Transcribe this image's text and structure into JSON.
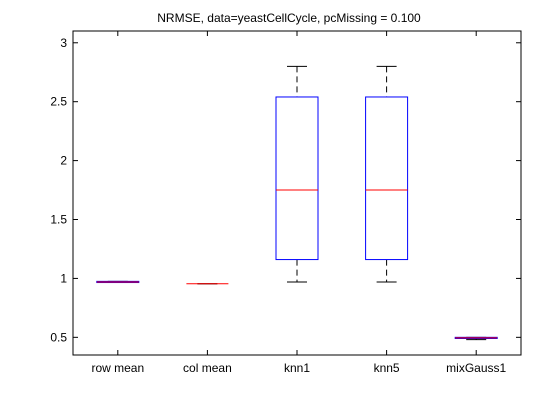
{
  "chart_data": {
    "type": "box",
    "title": "NRMSE, data=yeastCellCycle, pcMissing = 0.100",
    "xlabel": "",
    "ylabel": "",
    "ylim": [
      0.35,
      3.1
    ],
    "yticks": [
      0.5,
      1,
      1.5,
      2,
      2.5,
      3
    ],
    "ytick_labels": [
      "0.5",
      "1",
      "1.5",
      "2",
      "2.5",
      "3"
    ],
    "grid": false,
    "colors": {
      "box": "#0000ff",
      "median": "#ff0000",
      "whisker": "#000000",
      "axes": "#000000"
    },
    "categories": [
      "row mean",
      "col mean",
      "knn1",
      "knn5",
      "mixGauss1"
    ],
    "boxes": [
      {
        "label": "row mean",
        "min": 0.965,
        "q1": 0.965,
        "median": 0.97,
        "q3": 0.975,
        "max": 0.975
      },
      {
        "label": "col mean",
        "min": 0.955,
        "q1": 0.955,
        "median": 0.955,
        "q3": 0.955,
        "max": 0.955
      },
      {
        "label": "knn1",
        "min": 0.97,
        "q1": 1.16,
        "median": 1.75,
        "q3": 2.54,
        "max": 2.8
      },
      {
        "label": "knn5",
        "min": 0.97,
        "q1": 1.16,
        "median": 1.75,
        "q3": 2.54,
        "max": 2.8
      },
      {
        "label": "mixGauss1",
        "min": 0.48,
        "q1": 0.49,
        "median": 0.495,
        "q3": 0.5,
        "max": 0.5
      }
    ]
  }
}
